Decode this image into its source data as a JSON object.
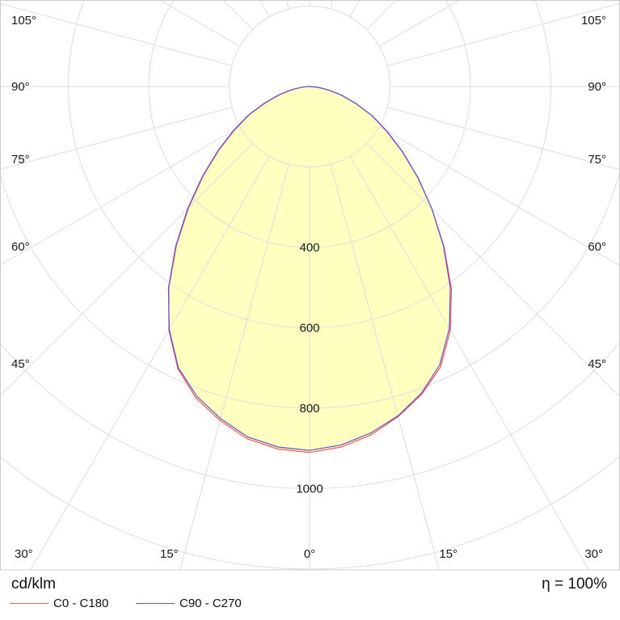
{
  "chart_data": {
    "type": "polar",
    "unit": "cd/klm",
    "efficiency": "η = 100%",
    "radial_ticks": [
      200,
      400,
      600,
      800,
      1000,
      1200
    ],
    "radial_tick_labels": [
      "400",
      "600",
      "800",
      "1000"
    ],
    "angle_ticks": [
      30,
      15,
      0,
      15,
      30,
      45,
      60,
      75,
      90,
      105
    ],
    "angle_labels_left": [
      "105°",
      "90°",
      "75°",
      "60°",
      "45°",
      "30°",
      "15°"
    ],
    "angle_labels_right": [
      "105°",
      "90°",
      "75°",
      "60°",
      "45°",
      "30°",
      "15°"
    ],
    "angle_label_bottom_center": "0°",
    "fill_color": "#ffffc0",
    "series": [
      {
        "name": "C0 - C180",
        "color": "#ff5555",
        "gamma": [
          0,
          5,
          10,
          15,
          20,
          25,
          30,
          35,
          40,
          45,
          50,
          55,
          60,
          65,
          70,
          75,
          80,
          85,
          90
        ],
        "right": [
          910,
          900,
          880,
          850,
          815,
          770,
          700,
          615,
          520,
          430,
          350,
          280,
          220,
          170,
          120,
          80,
          45,
          20,
          0
        ],
        "left": [
          910,
          905,
          890,
          860,
          825,
          775,
          700,
          610,
          515,
          425,
          345,
          275,
          215,
          165,
          115,
          75,
          42,
          18,
          0
        ]
      },
      {
        "name": "C90 - C270",
        "color": "#5555dd",
        "gamma": [
          0,
          5,
          10,
          15,
          20,
          25,
          30,
          35,
          40,
          45,
          50,
          55,
          60,
          65,
          70,
          75,
          80,
          85,
          90
        ],
        "right": [
          905,
          895,
          875,
          848,
          812,
          765,
          695,
          610,
          518,
          430,
          352,
          282,
          222,
          172,
          122,
          82,
          46,
          20,
          0
        ],
        "left": [
          905,
          900,
          885,
          855,
          820,
          772,
          698,
          612,
          518,
          428,
          348,
          278,
          218,
          168,
          118,
          78,
          44,
          19,
          0
        ]
      }
    ]
  }
}
